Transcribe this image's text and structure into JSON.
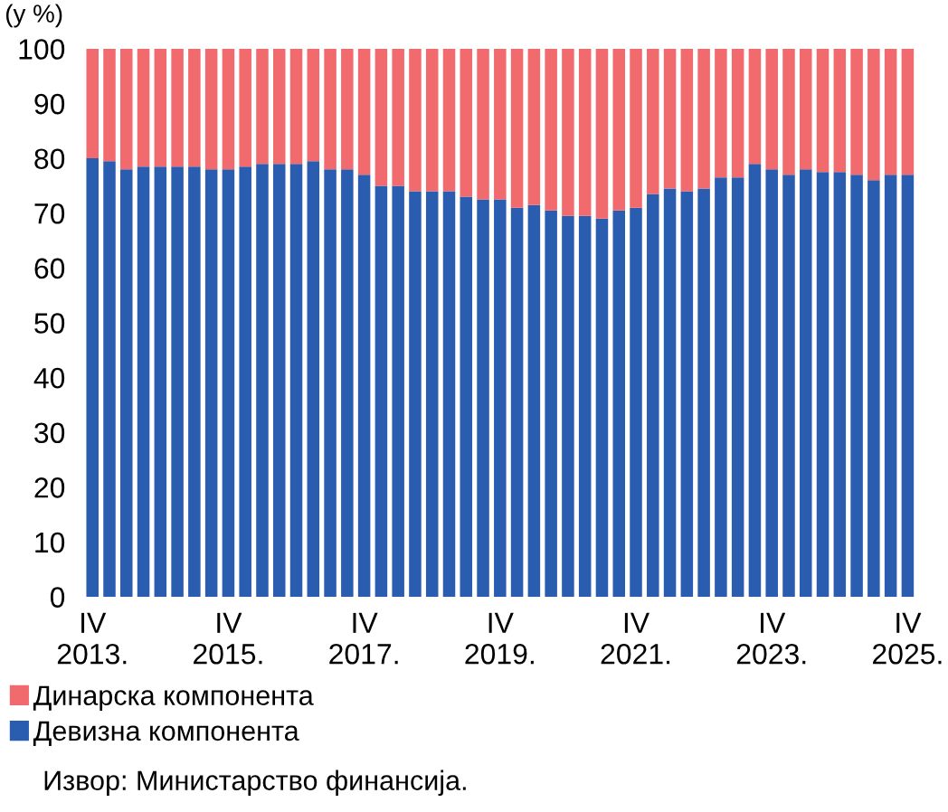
{
  "chart_data": {
    "type": "bar",
    "stacked": true,
    "ylabel": "(у %)",
    "categories": [
      "IV\n2013.",
      null,
      null,
      null,
      null,
      null,
      null,
      null,
      "IV\n2015.",
      null,
      null,
      null,
      null,
      null,
      null,
      null,
      "IV\n2017.",
      null,
      null,
      null,
      null,
      null,
      null,
      null,
      "IV\n2019.",
      null,
      null,
      null,
      null,
      null,
      null,
      null,
      "IV\n2021.",
      null,
      null,
      null,
      null,
      null,
      null,
      null,
      "IV\n2023.",
      null,
      null,
      null,
      null,
      null,
      null,
      null,
      "IV\n2025."
    ],
    "series": [
      {
        "name": "Девизна компонента",
        "color": "#2a5cb0",
        "values": [
          80,
          79.5,
          78,
          78.5,
          78.5,
          78.5,
          78.5,
          78,
          78,
          78.5,
          79,
          79,
          79,
          79.5,
          78,
          78,
          77,
          75,
          75,
          74,
          74,
          74,
          73,
          72.5,
          72.5,
          71,
          71.5,
          70.5,
          69.5,
          69.5,
          69,
          70.5,
          71,
          73.5,
          74.5,
          74,
          74.5,
          76.5,
          76.5,
          79,
          78,
          77,
          78,
          77.5,
          77.5,
          77,
          76,
          77,
          77
        ]
      },
      {
        "name": "Динарска компонента",
        "color": "#f06a6e",
        "values": [
          20,
          20.5,
          22,
          21.5,
          21.5,
          21.5,
          21.5,
          22,
          22,
          21.5,
          21,
          21,
          21,
          20.5,
          22,
          22,
          23,
          25,
          25,
          26,
          26,
          26,
          27,
          27.5,
          27.5,
          29,
          28.5,
          29.5,
          30.5,
          30.5,
          31,
          29.5,
          29,
          26.5,
          25.5,
          26,
          25.5,
          23.5,
          23.5,
          21,
          22,
          23,
          22,
          22.5,
          22.5,
          23,
          24,
          23,
          23
        ]
      }
    ],
    "ylim": [
      0,
      100
    ],
    "yticks": [
      0,
      10,
      20,
      30,
      40,
      50,
      60,
      70,
      80,
      90,
      100
    ],
    "legend": "bottom left",
    "annotations": [
      "Извор: Министарство финансија."
    ]
  }
}
